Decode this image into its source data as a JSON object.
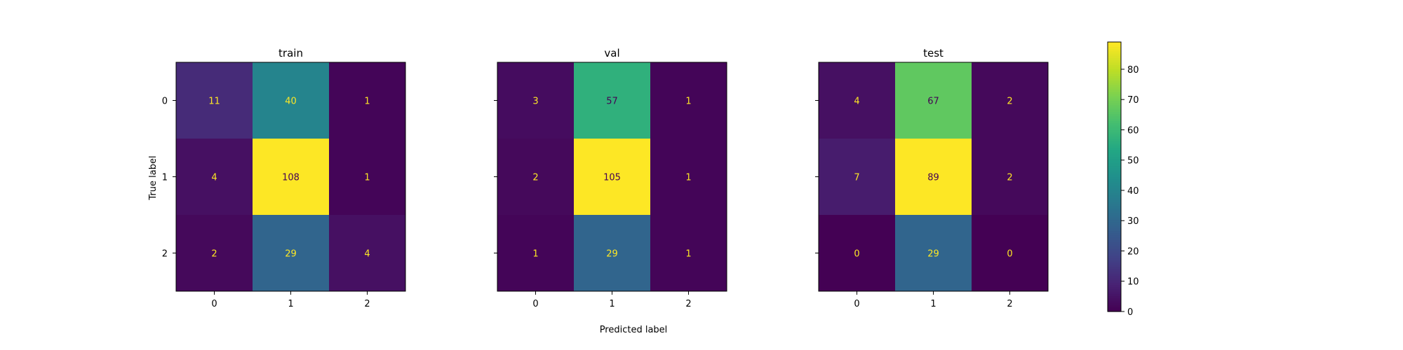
{
  "chart_data": {
    "type": "heatmap",
    "xlabel": "Predicted label",
    "ylabel": "True label",
    "categories": [
      "0",
      "1",
      "2"
    ],
    "colormap": "viridis",
    "colorbar": {
      "min": 0,
      "max": 89,
      "ticks": [
        0,
        10,
        20,
        30,
        40,
        50,
        60,
        70,
        80
      ]
    },
    "panels": [
      {
        "title": "train",
        "matrix": [
          [
            11,
            40,
            1
          ],
          [
            4,
            108,
            1
          ],
          [
            2,
            29,
            4
          ]
        ]
      },
      {
        "title": "val",
        "matrix": [
          [
            3,
            57,
            1
          ],
          [
            2,
            105,
            1
          ],
          [
            1,
            29,
            1
          ]
        ]
      },
      {
        "title": "test",
        "matrix": [
          [
            4,
            67,
            2
          ],
          [
            7,
            89,
            2
          ],
          [
            0,
            29,
            0
          ]
        ]
      }
    ]
  }
}
